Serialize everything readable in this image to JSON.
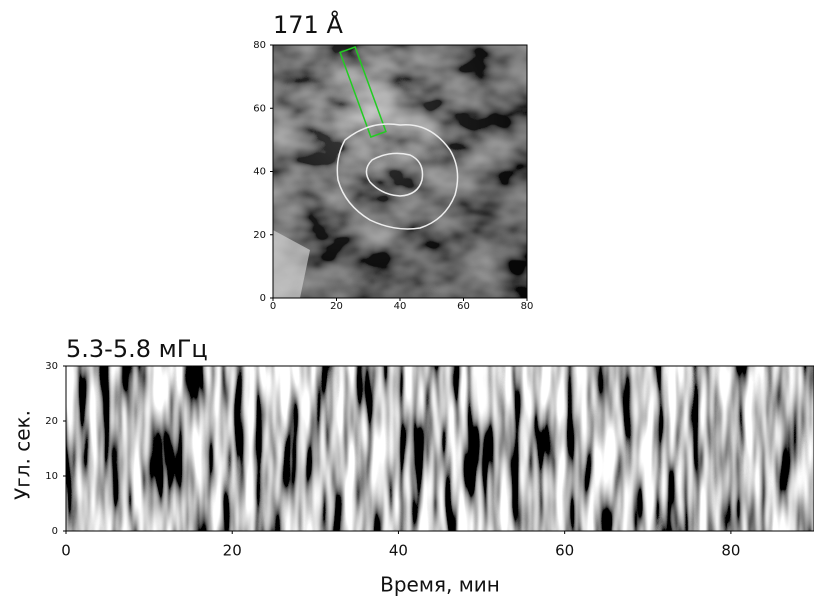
{
  "chart_data": [
    {
      "type": "image",
      "title": "171 Å",
      "xlim": [
        0,
        80
      ],
      "ylim": [
        0,
        80
      ],
      "xticks": [
        0,
        20,
        40,
        60,
        80
      ],
      "yticks": [
        0,
        20,
        40,
        60,
        80
      ]
    },
    {
      "type": "image",
      "title": "5.3-5.8 мГц",
      "x_label": "Время, мин",
      "y_label": "Угл. сек.",
      "xlim": [
        0,
        90
      ],
      "ylim": [
        0,
        30
      ],
      "xticks": [
        0,
        20,
        40,
        60,
        80
      ],
      "yticks": [
        0,
        10,
        20,
        30
      ]
    }
  ]
}
